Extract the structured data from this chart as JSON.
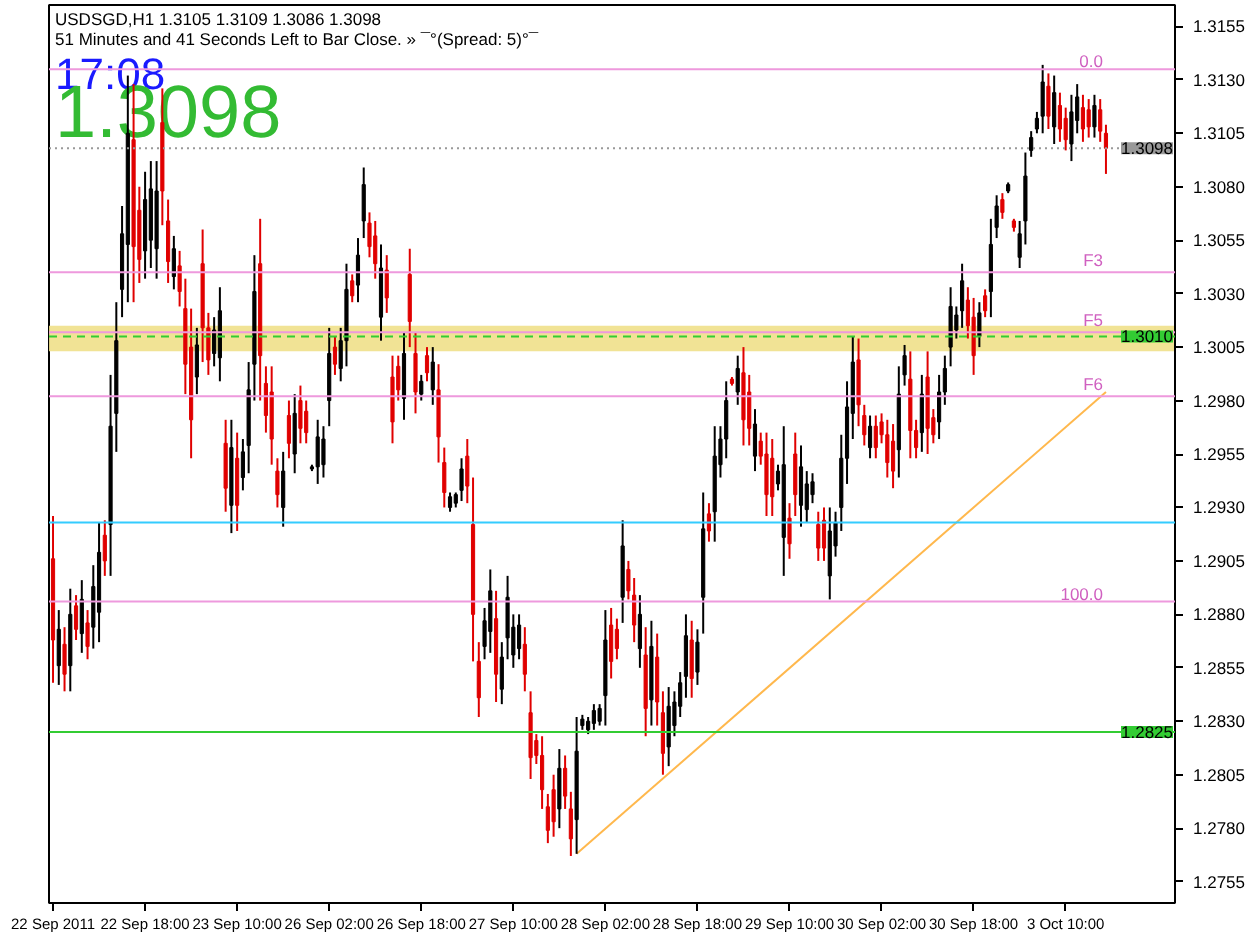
{
  "chart_data": {
    "type": "candlestick",
    "title": "USDSGD,H1  1.3105 1.3109 1.3086 1.3098",
    "subtitle": "51 Minutes and 41 Seconds Left to Bar Close. » ¯°(Spread: 5)°¯",
    "annotations": [
      "17:08",
      "1.3098",
      {
        "text": "0.0",
        "y": 1.3135
      },
      {
        "text": "F3",
        "y": 1.304
      },
      {
        "text": "F5",
        "y": 1.3012
      },
      {
        "text": "F6",
        "y": 1.2982
      },
      {
        "text": "100.0",
        "y": 1.2886
      }
    ],
    "categories": [
      "22 Sep 2011",
      null,
      null,
      null,
      null,
      null,
      null,
      null,
      null,
      null,
      null,
      null,
      null,
      null,
      null,
      null,
      "22 Sep 18:00",
      null,
      null,
      null,
      null,
      null,
      null,
      null,
      null,
      null,
      null,
      null,
      null,
      null,
      null,
      null,
      "23 Sep 10:00",
      null,
      null,
      null,
      null,
      null,
      null,
      null,
      null,
      null,
      null,
      null,
      null,
      null,
      null,
      null,
      "26 Sep 02:00",
      null,
      null,
      null,
      null,
      null,
      null,
      null,
      null,
      null,
      null,
      null,
      null,
      null,
      null,
      null,
      "26 Sep 18:00",
      null,
      null,
      null,
      null,
      null,
      null,
      null,
      null,
      null,
      null,
      null,
      null,
      null,
      null,
      null,
      "27 Sep 10:00",
      null,
      null,
      null,
      null,
      null,
      null,
      null,
      null,
      null,
      null,
      null,
      null,
      null,
      null,
      null,
      "28 Sep 02:00",
      null,
      null,
      null,
      null,
      null,
      null,
      null,
      null,
      null,
      null,
      null,
      null,
      null,
      null,
      null,
      "28 Sep 18:00",
      null,
      null,
      null,
      null,
      null,
      null,
      null,
      null,
      null,
      null,
      null,
      null,
      null,
      null,
      null,
      "29 Sep 10:00",
      null,
      null,
      null,
      null,
      null,
      null,
      null,
      null,
      null,
      null,
      null,
      null,
      null,
      null,
      null,
      "30 Sep 02:00",
      null,
      null,
      null,
      null,
      null,
      null,
      null,
      null,
      null,
      null,
      null,
      null,
      null,
      null,
      null,
      "30 Sep 18:00",
      null,
      null,
      null,
      null,
      null,
      null,
      null,
      null,
      null,
      null,
      null,
      null,
      null,
      null,
      null,
      "3 Oct 10:00",
      null,
      null,
      null,
      null,
      null,
      null,
      null
    ],
    "colors": [
      "#e00000",
      "#000000",
      "#e00000",
      "#000000",
      "#e00000",
      "#000000",
      "#e00000",
      "#000000",
      "#000000",
      "#e00000",
      "#000000",
      "#000000",
      "#000000",
      "#000000",
      "#e00000",
      "#e00000",
      "#000000",
      "#000000",
      "#000000",
      "#e00000",
      "#e00000",
      "#000000",
      "#e00000",
      "#e00000",
      "#e00000",
      "#000000",
      "#e00000",
      "#e00000",
      "#000000",
      "#000000",
      "#e00000",
      "#000000",
      "#e00000",
      "#000000",
      "#000000",
      "#000000",
      "#e00000",
      "#e00000",
      "#e00000",
      "#e00000",
      "#000000",
      "#e00000",
      "#000000",
      "#e00000",
      "#e00000",
      "#000000",
      "#000000",
      "#000000",
      "#000000",
      "#e00000",
      "#000000",
      "#000000",
      "#e00000",
      "#000000",
      "#000000",
      "#e00000",
      "#e00000",
      "#000000",
      "#e00000",
      "#e00000",
      "#e00000",
      "#000000",
      "#e00000",
      "#e00000",
      "#000000",
      "#e00000",
      "#000000",
      "#e00000",
      "#e00000",
      "#000000",
      "#000000",
      "#000000",
      "#e00000",
      "#e00000",
      "#e00000",
      "#000000",
      "#000000",
      "#e00000",
      "#000000",
      "#000000",
      "#000000",
      "#000000",
      "#e00000",
      "#e00000",
      "#e00000",
      "#e00000",
      "#e00000",
      "#e00000",
      "#000000",
      "#e00000",
      "#e00000",
      "#000000",
      "#000000",
      "#000000",
      "#000000",
      "#000000",
      "#000000",
      "#e00000",
      "#e00000",
      "#000000",
      "#e00000",
      "#e00000",
      "#000000",
      "#e00000",
      "#000000",
      "#e00000",
      "#e00000",
      "#000000",
      "#000000",
      "#000000",
      "#000000",
      "#e00000",
      "#000000",
      "#000000",
      "#e00000",
      "#000000",
      "#000000",
      "#000000",
      "#e00000",
      "#000000",
      "#e00000",
      "#e00000",
      "#000000",
      "#e00000",
      "#e00000",
      "#e00000",
      "#000000",
      "#000000",
      "#e00000",
      "#e00000",
      "#000000",
      "#000000",
      "#000000",
      "#e00000",
      "#e00000",
      "#000000",
      "#000000",
      "#000000",
      "#000000",
      "#000000",
      "#e00000",
      "#e00000",
      "#000000",
      "#e00000",
      "#e00000",
      "#e00000",
      "#e00000",
      "#000000",
      "#000000",
      "#e00000",
      "#e00000",
      "#000000",
      "#e00000",
      "#e00000",
      "#000000",
      "#000000",
      "#000000",
      "#000000",
      "#000000",
      "#e00000",
      "#e00000",
      "#000000",
      "#e00000",
      "#000000",
      "#000000",
      "#e00000",
      "#000000",
      "#e00000",
      "#000000",
      "#000000",
      "#000000",
      "#000000",
      "#000000",
      "#e00000",
      "#000000",
      "#e00000",
      "#e00000",
      "#000000",
      "#000000",
      "#e00000",
      "#e00000",
      "#000000",
      "#e00000",
      "#e00000"
    ],
    "ohlc": [
      [
        1.2906,
        1.2926,
        1.2848,
        1.2868
      ],
      [
        1.2856,
        1.2882,
        1.2847,
        1.2873
      ],
      [
        1.2866,
        1.2874,
        1.2844,
        1.2852
      ],
      [
        1.2856,
        1.2892,
        1.2844,
        1.288
      ],
      [
        1.2884,
        1.2889,
        1.2868,
        1.2873
      ],
      [
        1.2871,
        1.2896,
        1.2862,
        1.2887
      ],
      [
        1.2876,
        1.2882,
        1.2859,
        1.2865
      ],
      [
        1.2874,
        1.2903,
        1.2864,
        1.2893
      ],
      [
        1.2881,
        1.2923,
        1.2867,
        1.2909
      ],
      [
        1.2917,
        1.2924,
        1.2898,
        1.2905
      ],
      [
        1.2922,
        1.2992,
        1.2898,
        1.2968
      ],
      [
        1.2974,
        1.3026,
        1.2956,
        1.3008
      ],
      [
        1.3032,
        1.3071,
        1.3019,
        1.3058
      ],
      [
        1.3053,
        1.3132,
        1.3026,
        1.3105
      ],
      [
        1.3102,
        1.3128,
        1.3026,
        1.3052
      ],
      [
        1.3069,
        1.308,
        1.3035,
        1.3046
      ],
      [
        1.305,
        1.3087,
        1.3037,
        1.3074
      ],
      [
        1.3055,
        1.3092,
        1.3042,
        1.3079
      ],
      [
        1.3051,
        1.3092,
        1.3037,
        1.3078
      ],
      [
        1.311,
        1.3126,
        1.3062,
        1.3078
      ],
      [
        1.3064,
        1.3074,
        1.3035,
        1.3045
      ],
      [
        1.3038,
        1.3057,
        1.3032,
        1.3051
      ],
      [
        1.3043,
        1.305,
        1.3024,
        1.3031
      ],
      [
        1.3023,
        1.3037,
        1.2983,
        1.2997
      ],
      [
        1.3005,
        1.3023,
        1.2953,
        1.2971
      ],
      [
        1.2991,
        1.3014,
        1.2983,
        1.3006
      ],
      [
        1.3044,
        1.306,
        1.2998,
        1.3014
      ],
      [
        1.3014,
        1.3021,
        1.2992,
        1.2999
      ],
      [
        1.3002,
        1.3019,
        1.2996,
        1.3013
      ],
      [
        1.3,
        1.3033,
        1.2989,
        1.3022
      ],
      [
        1.296,
        1.2971,
        1.2928,
        1.2939
      ],
      [
        1.2931,
        1.2971,
        1.2918,
        1.2958
      ],
      [
        1.2953,
        1.2965,
        1.2919,
        1.2931
      ],
      [
        1.2944,
        1.2962,
        1.2938,
        1.2956
      ],
      [
        1.2959,
        1.2998,
        1.2946,
        1.2985
      ],
      [
        1.2997,
        1.3048,
        1.298,
        1.3031
      ],
      [
        1.3044,
        1.3065,
        1.298,
        1.3001
      ],
      [
        1.2988,
        1.2996,
        1.2965,
        1.2973
      ],
      [
        1.2984,
        1.2996,
        1.295,
        1.2962
      ],
      [
        1.2947,
        1.2953,
        1.293,
        1.2936
      ],
      [
        1.293,
        1.2956,
        1.2921,
        1.2947
      ],
      [
        1.2973,
        1.298,
        1.2953,
        1.296
      ],
      [
        1.2955,
        1.2983,
        1.2946,
        1.2974
      ],
      [
        1.298,
        1.2987,
        1.296,
        1.2967
      ],
      [
        1.2975,
        1.298,
        1.296,
        1.2965
      ],
      [
        1.2948,
        1.295,
        1.2947,
        1.2949
      ],
      [
        1.2949,
        1.2971,
        1.2941,
        1.2963
      ],
      [
        1.295,
        1.2968,
        1.2944,
        1.2962
      ],
      [
        1.298,
        1.3014,
        1.2968,
        1.3002
      ],
      [
        1.3005,
        1.301,
        1.2992,
        1.2997
      ],
      [
        1.2995,
        1.3014,
        1.2989,
        1.3008
      ],
      [
        1.3008,
        1.3044,
        1.2996,
        1.3032
      ],
      [
        1.3036,
        1.3039,
        1.3026,
        1.3029
      ],
      [
        1.3034,
        1.3056,
        1.3026,
        1.3048
      ],
      [
        1.3064,
        1.3089,
        1.3056,
        1.3081
      ],
      [
        1.3063,
        1.3068,
        1.3047,
        1.3052
      ],
      [
        1.3057,
        1.3064,
        1.3037,
        1.3044
      ],
      [
        1.3019,
        1.3053,
        1.3008,
        1.3042
      ],
      [
        1.3041,
        1.3048,
        1.3021,
        1.3028
      ],
      [
        1.2991,
        1.3001,
        1.296,
        1.297
      ],
      [
        1.2996,
        1.3001,
        1.298,
        1.2985
      ],
      [
        1.2981,
        1.3012,
        1.2971,
        1.3002
      ],
      [
        1.3039,
        1.3051,
        1.3005,
        1.3017
      ],
      [
        1.3002,
        1.3012,
        1.2974,
        1.2984
      ],
      [
        1.2983,
        1.2992,
        1.298,
        1.2989
      ],
      [
        1.3001,
        1.3005,
        1.2989,
        1.2993
      ],
      [
        1.2985,
        1.3005,
        1.2978,
        1.2998
      ],
      [
        1.2985,
        1.2997,
        1.2951,
        1.2963
      ],
      [
        1.2951,
        1.2958,
        1.293,
        1.2937
      ],
      [
        1.293,
        1.2937,
        1.2928,
        1.2935
      ],
      [
        1.2932,
        1.2937,
        1.293,
        1.2936
      ],
      [
        1.2938,
        1.2953,
        1.2933,
        1.2948
      ],
      [
        1.2954,
        1.2962,
        1.2932,
        1.294
      ],
      [
        1.2922,
        1.2944,
        1.2858,
        1.288
      ],
      [
        1.2858,
        1.2867,
        1.2832,
        1.2841
      ],
      [
        1.2865,
        1.2883,
        1.2859,
        1.2877
      ],
      [
        1.2872,
        1.2901,
        1.2862,
        1.2891
      ],
      [
        1.2878,
        1.2891,
        1.2839,
        1.2852
      ],
      [
        1.2845,
        1.2867,
        1.2838,
        1.286
      ],
      [
        1.2869,
        1.2898,
        1.2859,
        1.2888
      ],
      [
        1.2861,
        1.288,
        1.2855,
        1.2874
      ],
      [
        1.2864,
        1.288,
        1.2859,
        1.2875
      ],
      [
        1.2866,
        1.2874,
        1.2844,
        1.2852
      ],
      [
        1.2834,
        1.2844,
        1.2803,
        1.2813
      ],
      [
        1.2821,
        1.2824,
        1.281,
        1.2814
      ],
      [
        1.2814,
        1.2823,
        1.2789,
        1.2798
      ],
      [
        1.279,
        1.2796,
        1.2773,
        1.2779
      ],
      [
        1.2798,
        1.2805,
        1.2776,
        1.2783
      ],
      [
        1.2789,
        1.2817,
        1.278,
        1.2808
      ],
      [
        1.2808,
        1.2814,
        1.2789,
        1.2795
      ],
      [
        1.2789,
        1.2797,
        1.2767,
        1.2775
      ],
      [
        1.2784,
        1.2832,
        1.2768,
        1.2816
      ],
      [
        1.2828,
        1.2833,
        1.2826,
        1.2831
      ],
      [
        1.2826,
        1.2832,
        1.2824,
        1.283
      ],
      [
        1.2829,
        1.2838,
        1.2826,
        1.2835
      ],
      [
        1.283,
        1.2838,
        1.2828,
        1.2836
      ],
      [
        1.2842,
        1.2882,
        1.2828,
        1.2868
      ],
      [
        1.2875,
        1.2883,
        1.285,
        1.2858
      ],
      [
        1.2873,
        1.2878,
        1.2859,
        1.2864
      ],
      [
        1.2888,
        1.2924,
        1.2876,
        1.2912
      ],
      [
        1.2901,
        1.2905,
        1.2887,
        1.2891
      ],
      [
        1.2889,
        1.2897,
        1.2867,
        1.2875
      ],
      [
        1.2864,
        1.2889,
        1.2855,
        1.288
      ],
      [
        1.2861,
        1.2874,
        1.2823,
        1.2836
      ],
      [
        1.284,
        1.2877,
        1.2828,
        1.2865
      ],
      [
        1.286,
        1.2871,
        1.2828,
        1.2839
      ],
      [
        1.2834,
        1.2844,
        1.2805,
        1.2815
      ],
      [
        1.2818,
        1.2846,
        1.2809,
        1.2837
      ],
      [
        1.2828,
        1.2844,
        1.2823,
        1.2839
      ],
      [
        1.2837,
        1.2853,
        1.2832,
        1.2848
      ],
      [
        1.2851,
        1.288,
        1.2841,
        1.287
      ],
      [
        1.2868,
        1.2877,
        1.2841,
        1.285
      ],
      [
        1.2853,
        1.2873,
        1.2847,
        1.2867
      ],
      [
        1.2888,
        1.2937,
        1.2871,
        1.292
      ],
      [
        1.2927,
        1.2932,
        1.2914,
        1.2919
      ],
      [
        1.2928,
        1.2968,
        1.2914,
        1.2954
      ],
      [
        1.295,
        1.2968,
        1.2944,
        1.2962
      ],
      [
        1.2962,
        1.2989,
        1.2953,
        1.298
      ],
      [
        1.299,
        1.2991,
        1.2987,
        1.2988
      ],
      [
        1.2984,
        1.3001,
        1.2978,
        1.2995
      ],
      [
        1.2993,
        1.3005,
        1.2959,
        1.2971
      ],
      [
        1.2984,
        1.2992,
        1.2959,
        1.2967
      ],
      [
        1.2954,
        1.2976,
        1.2947,
        1.2969
      ],
      [
        1.2961,
        1.2965,
        1.295,
        1.2954
      ],
      [
        1.2955,
        1.2965,
        1.2926,
        1.2936
      ],
      [
        1.2953,
        1.2962,
        1.2926,
        1.2935
      ],
      [
        1.2941,
        1.295,
        1.2938,
        1.2947
      ],
      [
        1.2916,
        1.2968,
        1.2898,
        1.295
      ],
      [
        1.2925,
        1.2932,
        1.2906,
        1.2913
      ],
      [
        1.2955,
        1.2965,
        1.2926,
        1.2936
      ],
      [
        1.2931,
        1.2959,
        1.2921,
        1.2949
      ],
      [
        1.2929,
        1.2947,
        1.2923,
        1.2941
      ],
      [
        1.2936,
        1.2946,
        1.2932,
        1.2942
      ],
      [
        1.2922,
        1.2928,
        1.2905,
        1.2911
      ],
      [
        1.2924,
        1.293,
        1.2905,
        1.2911
      ],
      [
        1.2898,
        1.293,
        1.2887,
        1.2919
      ],
      [
        1.2912,
        1.2928,
        1.2907,
        1.2923
      ],
      [
        1.293,
        1.2964,
        1.2919,
        1.2953
      ],
      [
        1.2953,
        1.2989,
        1.2941,
        1.2977
      ],
      [
        1.2974,
        1.301,
        1.2962,
        1.2998
      ],
      [
        1.2999,
        1.3009,
        1.2968,
        1.2978
      ],
      [
        1.2973,
        1.2978,
        1.2959,
        1.2964
      ],
      [
        1.2958,
        1.2973,
        1.2953,
        1.2968
      ],
      [
        1.2968,
        1.2973,
        1.2953,
        1.2958
      ],
      [
        1.297,
        1.2974,
        1.296,
        1.2964
      ],
      [
        1.2964,
        1.2971,
        1.2944,
        1.2951
      ],
      [
        1.2961,
        1.2969,
        1.2939,
        1.2947
      ],
      [
        1.2957,
        1.2996,
        1.2944,
        1.2983
      ],
      [
        1.2992,
        1.3006,
        1.2987,
        1.3001
      ],
      [
        1.299,
        1.3003,
        1.2953,
        1.2966
      ],
      [
        1.2966,
        1.2971,
        1.2953,
        1.2958
      ],
      [
        1.2965,
        1.2992,
        1.2956,
        1.2983
      ],
      [
        1.2991,
        1.3003,
        1.2955,
        1.2967
      ],
      [
        1.2972,
        1.2976,
        1.296,
        1.2964
      ],
      [
        1.297,
        1.2992,
        1.2962,
        1.2984
      ],
      [
        1.2984,
        1.3001,
        1.2978,
        1.2995
      ],
      [
        1.3005,
        1.3033,
        1.2996,
        1.3024
      ],
      [
        1.3013,
        1.3024,
        1.3009,
        1.302
      ],
      [
        1.3022,
        1.3044,
        1.3014,
        1.3036
      ],
      [
        1.3027,
        1.3033,
        1.3009,
        1.3015
      ],
      [
        1.3019,
        1.3028,
        1.2992,
        1.3001
      ],
      [
        1.301,
        1.3026,
        1.3005,
        1.3021
      ],
      [
        1.3029,
        1.3032,
        1.3019,
        1.3022
      ],
      [
        1.3031,
        1.3065,
        1.3019,
        1.3053
      ],
      [
        1.3061,
        1.3076,
        1.3056,
        1.3071
      ],
      [
        1.3074,
        1.3077,
        1.3065,
        1.3068
      ],
      [
        1.3078,
        1.3082,
        1.3077,
        1.3081
      ],
      [
        1.3064,
        1.3065,
        1.3059,
        1.3061
      ],
      [
        1.3047,
        1.3064,
        1.3042,
        1.3058
      ],
      [
        1.3064,
        1.3096,
        1.3053,
        1.3085
      ],
      [
        1.3097,
        1.3106,
        1.3094,
        1.3103
      ],
      [
        1.3107,
        1.3115,
        1.3105,
        1.3112
      ],
      [
        1.3113,
        1.3137,
        1.3105,
        1.3129
      ],
      [
        1.3127,
        1.3133,
        1.3107,
        1.3113
      ],
      [
        1.3108,
        1.3132,
        1.31,
        1.3124
      ],
      [
        1.3118,
        1.3124,
        1.3101,
        1.3107
      ],
      [
        1.3112,
        1.3117,
        1.3097,
        1.3102
      ],
      [
        1.31,
        1.3123,
        1.3092,
        1.3115
      ],
      [
        1.3111,
        1.3128,
        1.3105,
        1.3122
      ],
      [
        1.3117,
        1.3123,
        1.3101,
        1.3107
      ],
      [
        1.3116,
        1.3121,
        1.3103,
        1.3108
      ],
      [
        1.3108,
        1.3123,
        1.3103,
        1.3118
      ],
      [
        1.3116,
        1.3121,
        1.3101,
        1.3106
      ],
      [
        1.3105,
        1.3109,
        1.3086,
        1.3098
      ]
    ],
    "series": [
      {
        "type": "line",
        "color": "#ffb84d",
        "values": [
          null,
          null,
          null,
          null,
          null,
          null,
          null,
          null,
          null,
          null,
          null,
          null,
          null,
          null,
          null,
          null,
          null,
          null,
          null,
          null,
          null,
          null,
          null,
          null,
          null,
          null,
          null,
          null,
          null,
          null,
          null,
          null,
          null,
          null,
          null,
          null,
          null,
          null,
          null,
          null,
          null,
          null,
          null,
          null,
          null,
          null,
          null,
          null,
          null,
          null,
          null,
          null,
          null,
          null,
          null,
          null,
          null,
          null,
          null,
          null,
          null,
          null,
          null,
          null,
          null,
          null,
          null,
          null,
          null,
          null,
          null,
          null,
          null,
          null,
          null,
          null,
          null,
          null,
          null,
          null,
          null,
          null,
          null,
          null,
          null,
          null,
          null,
          null,
          null,
          null,
          null,
          1.2768,
          null,
          null,
          null,
          null,
          null,
          null,
          null,
          null,
          null,
          null,
          null,
          null,
          null,
          null,
          null,
          null,
          null,
          null,
          null,
          null,
          null,
          null,
          null,
          null,
          null,
          null,
          null,
          null,
          null,
          null,
          null,
          null,
          null,
          null,
          null,
          null,
          null,
          null,
          null,
          null,
          null,
          null,
          null,
          null,
          null,
          null,
          null,
          null,
          null,
          null,
          null,
          null,
          null,
          null,
          null,
          null,
          null,
          null,
          null,
          null,
          null,
          null,
          null,
          null,
          null,
          null,
          null,
          null,
          null,
          null,
          null,
          null,
          null,
          null,
          null,
          null,
          null,
          null,
          null,
          null,
          null,
          null,
          null,
          null,
          null,
          null,
          null,
          null,
          null,
          null,
          null,
          1.2984
        ]
      }
    ],
    "ref_lines": [
      {
        "axis": "y",
        "value": 1.2923,
        "color": "#33ccff",
        "line_style": "solid"
      },
      {
        "axis": "y",
        "value": 1.2825,
        "label": "1.2825",
        "color": "#33cc33",
        "line_style": "solid"
      },
      {
        "axis": "y",
        "value": 1.301,
        "label": "1.3010",
        "color": "#33cc33",
        "line_style": "dashed"
      },
      {
        "axis": "y",
        "value": 1.3098,
        "label": "1.3098",
        "color": "#999999",
        "line_style": "dotted"
      },
      {
        "axis": "y",
        "value": 1.3135,
        "color": "#ee99dd",
        "line_style": "solid"
      },
      {
        "axis": "y",
        "value": 1.304,
        "color": "#ee99dd",
        "line_style": "solid"
      },
      {
        "axis": "y",
        "value": 1.3012,
        "color": "#ee99dd",
        "line_style": "solid"
      },
      {
        "axis": "y",
        "value": 1.2982,
        "color": "#ee99dd",
        "line_style": "solid"
      },
      {
        "axis": "y",
        "value": 1.2886,
        "color": "#ee99dd",
        "line_style": "solid"
      }
    ],
    "bands": [
      {
        "axis": "y",
        "from": 1.3003,
        "to": 1.3015,
        "color": "#f0e08a"
      }
    ],
    "ylim": [
      1.2745,
      1.3165
    ],
    "yticks": [
      {
        "value": 1.2755,
        "label": "1.2755"
      },
      {
        "value": 1.278,
        "label": "1.2780"
      },
      {
        "value": 1.2805,
        "label": "1.2805"
      },
      {
        "value": 1.283,
        "label": "1.2830"
      },
      {
        "value": 1.2855,
        "label": "1.2855"
      },
      {
        "value": 1.288,
        "label": "1.2880"
      },
      {
        "value": 1.2905,
        "label": "1.2905"
      },
      {
        "value": 1.293,
        "label": "1.2930"
      },
      {
        "value": 1.2955,
        "label": "1.2955"
      },
      {
        "value": 1.298,
        "label": "1.2980"
      },
      {
        "value": 1.3005,
        "label": "1.3005"
      },
      {
        "value": 1.303,
        "label": "1.3030"
      },
      {
        "value": 1.3055,
        "label": "1.3055"
      },
      {
        "value": 1.308,
        "label": "1.3080"
      },
      {
        "value": 1.3105,
        "label": "1.3105"
      },
      {
        "value": 1.313,
        "label": "1.3130"
      },
      {
        "value": 1.3155,
        "label": "1.3155"
      }
    ],
    "grid": false
  }
}
